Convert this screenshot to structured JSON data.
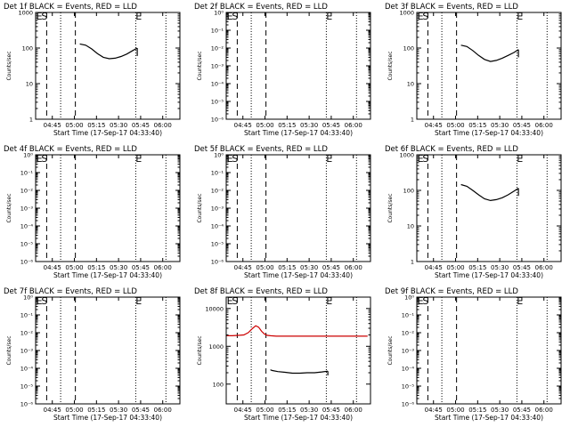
{
  "figure": {
    "background": "#ffffff",
    "events_color": "#000000",
    "lld_color": "#cc0000"
  },
  "chart_data": [
    {
      "type": "line",
      "title": "Det 1f BLACK = Events, RED = LLD",
      "xlabel": "Start Time (17-Sep-17 04:33:40)",
      "ylabel": "Counts/sec",
      "x_ticklabels": [
        "04:45",
        "05:00",
        "05:15",
        "05:30",
        "05:45",
        "06:00"
      ],
      "y_scale": "log",
      "y_ticklabels": [
        "1",
        "10",
        "100",
        "1000"
      ],
      "y_ticks": [
        1,
        10,
        100,
        1000
      ],
      "ylim": [
        1,
        1000
      ],
      "dashed_lines_min": [
        7.5,
        27
      ],
      "dotted_lines_min": [
        17,
        68,
        88.5
      ],
      "marker_labels": [
        {
          "text": "E",
          "x_min": 2.5,
          "y": 1000
        },
        {
          "text": "S",
          "x_min": 6,
          "y": 1000
        },
        {
          "text": "E",
          "x_min": 70,
          "y": 1000
        }
      ],
      "series": [
        {
          "color": "#000000",
          "segments": [
            {
              "x_min": [
                30,
                34,
                38,
                42,
                46,
                50,
                54,
                58,
                62,
                66,
                69
              ],
              "y": [
                130,
                120,
                95,
                70,
                55,
                50,
                52,
                58,
                68,
                85,
                100
              ]
            },
            {
              "x_min": [
                69,
                69
              ],
              "y": [
                100,
                60
              ]
            }
          ]
        }
      ]
    },
    {
      "type": "line",
      "title": "Det 2f BLACK = Events, RED = LLD",
      "xlabel": "Start Time (17-Sep-17 04:33:40)",
      "ylabel": "Counts/sec",
      "x_ticklabels": [
        "04:45",
        "05:00",
        "05:15",
        "05:30",
        "05:45",
        "06:00"
      ],
      "y_scale": "log",
      "y_ticklabels": [
        "10⁰",
        "10⁻¹",
        "10⁻²",
        "10⁻³",
        "10⁻⁴",
        "10⁻⁵",
        "10⁻⁶"
      ],
      "y_ticks": [
        1,
        0.1,
        0.01,
        0.001,
        0.0001,
        1e-05,
        1e-06
      ],
      "ylim": [
        1,
        1e-06
      ],
      "dashed_lines_min": [
        7.5,
        27
      ],
      "dotted_lines_min": [
        17,
        68,
        88.5
      ],
      "marker_labels": [
        {
          "text": "E",
          "x_min": 2.5,
          "y": 1.6
        },
        {
          "text": "S",
          "x_min": 6,
          "y": 1.6
        },
        {
          "text": "E",
          "x_min": 70,
          "y": 1.6
        }
      ],
      "series": []
    },
    {
      "type": "line",
      "title": "Det 3f BLACK = Events, RED = LLD",
      "xlabel": "Start Time (17-Sep-17 04:33:40)",
      "ylabel": "Counts/sec",
      "x_ticklabels": [
        "04:45",
        "05:00",
        "05:15",
        "05:30",
        "05:45",
        "06:00"
      ],
      "y_scale": "log",
      "y_ticklabels": [
        "1",
        "10",
        "100",
        "1000"
      ],
      "y_ticks": [
        1,
        10,
        100,
        1000
      ],
      "ylim": [
        1,
        1000
      ],
      "dashed_lines_min": [
        7.5,
        27
      ],
      "dotted_lines_min": [
        17,
        68,
        88.5
      ],
      "marker_labels": [
        {
          "text": "E",
          "x_min": 2.5,
          "y": 1000
        },
        {
          "text": "S",
          "x_min": 6,
          "y": 1000
        },
        {
          "text": "E",
          "x_min": 70,
          "y": 1000
        }
      ],
      "series": [
        {
          "color": "#000000",
          "segments": [
            {
              "x_min": [
                30,
                34,
                38,
                42,
                46,
                50,
                54,
                58,
                62,
                66,
                69
              ],
              "y": [
                120,
                110,
                85,
                62,
                48,
                42,
                45,
                52,
                62,
                75,
                90
              ]
            },
            {
              "x_min": [
                69,
                69
              ],
              "y": [
                90,
                55
              ]
            }
          ]
        }
      ]
    },
    {
      "type": "line",
      "title": "Det 4f BLACK = Events, RED = LLD",
      "xlabel": "Start Time (17-Sep-17 04:33:40)",
      "ylabel": "Counts/sec",
      "x_ticklabels": [
        "04:45",
        "05:00",
        "05:15",
        "05:30",
        "05:45",
        "06:00"
      ],
      "y_scale": "log",
      "y_ticklabels": [
        "10⁰",
        "10⁻¹",
        "10⁻²",
        "10⁻³",
        "10⁻⁴",
        "10⁻⁵",
        "10⁻⁶"
      ],
      "y_ticks": [
        1,
        0.1,
        0.01,
        0.001,
        0.0001,
        1e-05,
        1e-06
      ],
      "ylim": [
        1,
        1e-06
      ],
      "dashed_lines_min": [
        7.5,
        27
      ],
      "dotted_lines_min": [
        17,
        68,
        88.5
      ],
      "marker_labels": [
        {
          "text": "E",
          "x_min": 2.5,
          "y": 1.6
        },
        {
          "text": "S",
          "x_min": 6,
          "y": 1.6
        },
        {
          "text": "E",
          "x_min": 70,
          "y": 1.6
        }
      ],
      "series": []
    },
    {
      "type": "line",
      "title": "Det 5f BLACK = Events, RED = LLD",
      "xlabel": "Start Time (17-Sep-17 04:33:40)",
      "ylabel": "Counts/sec",
      "x_ticklabels": [
        "04:45",
        "05:00",
        "05:15",
        "05:30",
        "05:45",
        "06:00"
      ],
      "y_scale": "log",
      "y_ticklabels": [
        "10⁰",
        "10⁻¹",
        "10⁻²",
        "10⁻³",
        "10⁻⁴",
        "10⁻⁵",
        "10⁻⁶"
      ],
      "y_ticks": [
        1,
        0.1,
        0.01,
        0.001,
        0.0001,
        1e-05,
        1e-06
      ],
      "ylim": [
        1,
        1e-06
      ],
      "dashed_lines_min": [
        7.5,
        27
      ],
      "dotted_lines_min": [
        17,
        68,
        88.5
      ],
      "marker_labels": [
        {
          "text": "E",
          "x_min": 2.5,
          "y": 1.6
        },
        {
          "text": "S",
          "x_min": 6,
          "y": 1.6
        },
        {
          "text": "E",
          "x_min": 70,
          "y": 1.6
        }
      ],
      "series": []
    },
    {
      "type": "line",
      "title": "Det 6f BLACK = Events, RED = LLD",
      "xlabel": "Start Time (17-Sep-17 04:33:40)",
      "ylabel": "Counts/sec",
      "x_ticklabels": [
        "04:45",
        "05:00",
        "05:15",
        "05:30",
        "05:45",
        "06:00"
      ],
      "y_scale": "log",
      "y_ticklabels": [
        "1",
        "10",
        "100",
        "1000"
      ],
      "y_ticks": [
        1,
        10,
        100,
        1000
      ],
      "ylim": [
        1,
        1000
      ],
      "dashed_lines_min": [
        7.5,
        27
      ],
      "dotted_lines_min": [
        17,
        68,
        88.5
      ],
      "marker_labels": [
        {
          "text": "E",
          "x_min": 2.5,
          "y": 1000
        },
        {
          "text": "S",
          "x_min": 6,
          "y": 1000
        },
        {
          "text": "E",
          "x_min": 70,
          "y": 1000
        }
      ],
      "series": [
        {
          "color": "#000000",
          "segments": [
            {
              "x_min": [
                30,
                34,
                38,
                42,
                46,
                50,
                54,
                58,
                62,
                66,
                69
              ],
              "y": [
                145,
                130,
                100,
                75,
                58,
                52,
                55,
                62,
                75,
                95,
                115
              ]
            },
            {
              "x_min": [
                69,
                69
              ],
              "y": [
                115,
                70
              ]
            }
          ]
        }
      ]
    },
    {
      "type": "line",
      "title": "Det 7f BLACK = Events, RED = LLD",
      "xlabel": "Start Time (17-Sep-17 04:33:40)",
      "ylabel": "Counts/sec",
      "x_ticklabels": [
        "04:45",
        "05:00",
        "05:15",
        "05:30",
        "05:45",
        "06:00"
      ],
      "y_scale": "log",
      "y_ticklabels": [
        "10⁰",
        "10⁻¹",
        "10⁻²",
        "10⁻³",
        "10⁻⁴",
        "10⁻⁵",
        "10⁻⁶"
      ],
      "y_ticks": [
        1,
        0.1,
        0.01,
        0.001,
        0.0001,
        1e-05,
        1e-06
      ],
      "ylim": [
        1,
        1e-06
      ],
      "dashed_lines_min": [
        7.5,
        27
      ],
      "dotted_lines_min": [
        17,
        68,
        88.5
      ],
      "marker_labels": [
        {
          "text": "E",
          "x_min": 2.5,
          "y": 1.6
        },
        {
          "text": "S",
          "x_min": 6,
          "y": 1.6
        },
        {
          "text": "E",
          "x_min": 70,
          "y": 1.6
        }
      ],
      "series": []
    },
    {
      "type": "line",
      "title": "Det 8f BLACK = Events, RED = LLD",
      "xlabel": "Start Time (17-Sep-17 04:33:40)",
      "ylabel": "Counts/sec",
      "x_ticklabels": [
        "04:45",
        "05:00",
        "05:15",
        "05:30",
        "05:45",
        "06:00"
      ],
      "y_scale": "log",
      "y_ticklabels": [
        "100",
        "1000",
        "10000"
      ],
      "y_ticks": [
        100,
        1000,
        10000
      ],
      "ylim": [
        30,
        20000
      ],
      "dashed_lines_min": [
        7.5,
        27
      ],
      "dotted_lines_min": [
        17,
        68,
        88.5
      ],
      "marker_labels": [
        {
          "text": "E",
          "x_min": 2.5,
          "y": 20000
        },
        {
          "text": "S",
          "x_min": 6,
          "y": 20000
        },
        {
          "text": "E",
          "x_min": 70,
          "y": 20000
        }
      ],
      "series": [
        {
          "color": "#cc0000",
          "segments": [
            {
              "x_min": [
                0,
                4,
                8,
                12,
                15,
                18,
                20,
                22,
                24,
                26,
                28,
                30,
                34,
                40,
                50,
                60,
                70,
                80,
                90,
                96
              ],
              "y": [
                1900,
                1900,
                1950,
                2000,
                2300,
                3000,
                3500,
                3200,
                2500,
                2100,
                1950,
                1900,
                1850,
                1850,
                1850,
                1850,
                1850,
                1850,
                1850,
                1850
              ]
            }
          ]
        },
        {
          "color": "#000000",
          "segments": [
            {
              "x_min": [
                30,
                31,
                35,
                40,
                45,
                50,
                55,
                60,
                65,
                69
              ],
              "y": [
                240,
                230,
                215,
                205,
                195,
                195,
                200,
                200,
                210,
                220
              ]
            },
            {
              "x_min": [
                69,
                69
              ],
              "y": [
                220,
                170
              ]
            }
          ]
        }
      ]
    },
    {
      "type": "line",
      "title": "Det 9f BLACK = Events, RED = LLD",
      "xlabel": "Start Time (17-Sep-17 04:33:40)",
      "ylabel": "Counts/sec",
      "x_ticklabels": [
        "04:45",
        "05:00",
        "05:15",
        "05:30",
        "05:45",
        "06:00"
      ],
      "y_scale": "log",
      "y_ticklabels": [
        "10⁰",
        "10⁻¹",
        "10⁻²",
        "10⁻³",
        "10⁻⁴",
        "10⁻⁵",
        "10⁻⁶"
      ],
      "y_ticks": [
        1,
        0.1,
        0.01,
        0.001,
        0.0001,
        1e-05,
        1e-06
      ],
      "ylim": [
        1,
        1e-06
      ],
      "dashed_lines_min": [
        7.5,
        27
      ],
      "dotted_lines_min": [
        17,
        68,
        88.5
      ],
      "marker_labels": [
        {
          "text": "E",
          "x_min": 2.5,
          "y": 1.6
        },
        {
          "text": "S",
          "x_min": 6,
          "y": 1.6
        },
        {
          "text": "E",
          "x_min": 70,
          "y": 1.6
        }
      ],
      "series": []
    }
  ]
}
